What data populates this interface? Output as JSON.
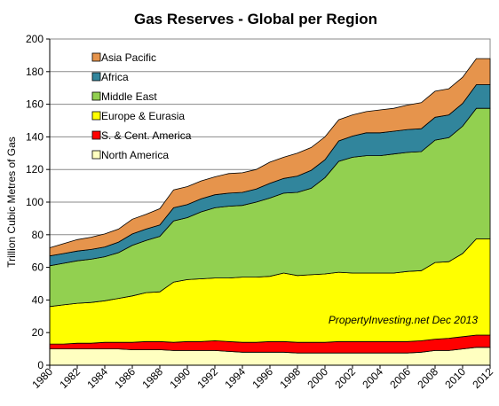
{
  "chart_data": {
    "type": "area",
    "stacked": true,
    "title": "Gas Reserves - Global per Region",
    "xlabel": "",
    "ylabel": "Trillion Cubic Metres of Gas",
    "ylim": [
      0,
      200
    ],
    "yticks": [
      0,
      20,
      40,
      60,
      80,
      100,
      120,
      140,
      160,
      180,
      200
    ],
    "xticks": [
      "1980",
      "1982",
      "1984",
      "1986",
      "1988",
      "1990",
      "1992",
      "1994",
      "1996",
      "1998",
      "2000",
      "2002",
      "2004",
      "2006",
      "2008",
      "2010",
      "2012"
    ],
    "x": [
      1980,
      1981,
      1982,
      1983,
      1984,
      1985,
      1986,
      1987,
      1988,
      1989,
      1990,
      1991,
      1992,
      1993,
      1994,
      1995,
      1996,
      1997,
      1998,
      1999,
      2000,
      2001,
      2002,
      2003,
      2004,
      2005,
      2006,
      2007,
      2008,
      2009,
      2010,
      2011,
      2012
    ],
    "grid": "horizontal",
    "legend": "top-left",
    "annotation": "PropertyInvesting.net  Dec 2013",
    "series": [
      {
        "name": "North America",
        "color": "#ffffc0",
        "values": [
          10,
          10,
          10,
          10,
          10,
          10,
          9.5,
          9.5,
          9.5,
          9,
          9,
          9,
          9,
          8.5,
          8,
          8,
          8,
          8,
          7.5,
          7.5,
          7.5,
          7.5,
          7.5,
          7.5,
          7.5,
          7.5,
          7.5,
          8,
          9,
          9,
          10,
          11,
          11
        ]
      },
      {
        "name": "S. & Cent. America",
        "color": "#ff0000",
        "values": [
          3,
          3,
          3.5,
          3.5,
          4,
          4,
          4.5,
          5,
          5,
          5,
          5.5,
          5.5,
          6,
          6,
          6,
          6,
          6.5,
          6.5,
          6.5,
          6.5,
          6.5,
          7,
          7,
          7,
          7,
          7,
          7,
          7,
          7,
          7.5,
          7.5,
          7.5,
          7.5
        ]
      },
      {
        "name": "Europe & Eurasia",
        "color": "#ffff00",
        "values": [
          23,
          24,
          24.5,
          25,
          25.5,
          27,
          28.5,
          30,
          30.5,
          37,
          38,
          38.5,
          38.5,
          39,
          40,
          40,
          40,
          42,
          41,
          41.5,
          42,
          42.5,
          42,
          42,
          42,
          42,
          43,
          43,
          47,
          47,
          51,
          59,
          59
        ]
      },
      {
        "name": "Middle East",
        "color": "#92d050",
        "values": [
          25,
          25.5,
          26,
          26.5,
          27,
          28,
          31,
          32,
          34,
          37.5,
          38,
          41,
          43,
          44,
          44,
          46,
          48,
          49,
          51,
          53,
          59,
          68,
          71,
          72,
          72,
          73,
          73,
          73,
          75,
          76,
          78,
          80,
          80
        ]
      },
      {
        "name": "Africa",
        "color": "#31859c",
        "values": [
          6,
          6,
          6,
          6,
          6,
          6.5,
          7,
          7,
          7,
          8,
          8,
          8,
          8,
          8,
          8,
          8,
          9,
          9,
          10,
          11,
          11,
          12.5,
          13,
          14,
          14,
          14,
          14,
          14,
          14,
          14,
          14,
          14.5,
          14.5
        ]
      },
      {
        "name": "Asia Pacific",
        "color": "#e6944c",
        "values": [
          5,
          6,
          7,
          7.5,
          8,
          8,
          9,
          9,
          10,
          11,
          11,
          11,
          11,
          12,
          12,
          12,
          13,
          13,
          14,
          14,
          14,
          13,
          13,
          13,
          14,
          14,
          15,
          16,
          16,
          16,
          16,
          16,
          16
        ]
      }
    ]
  }
}
